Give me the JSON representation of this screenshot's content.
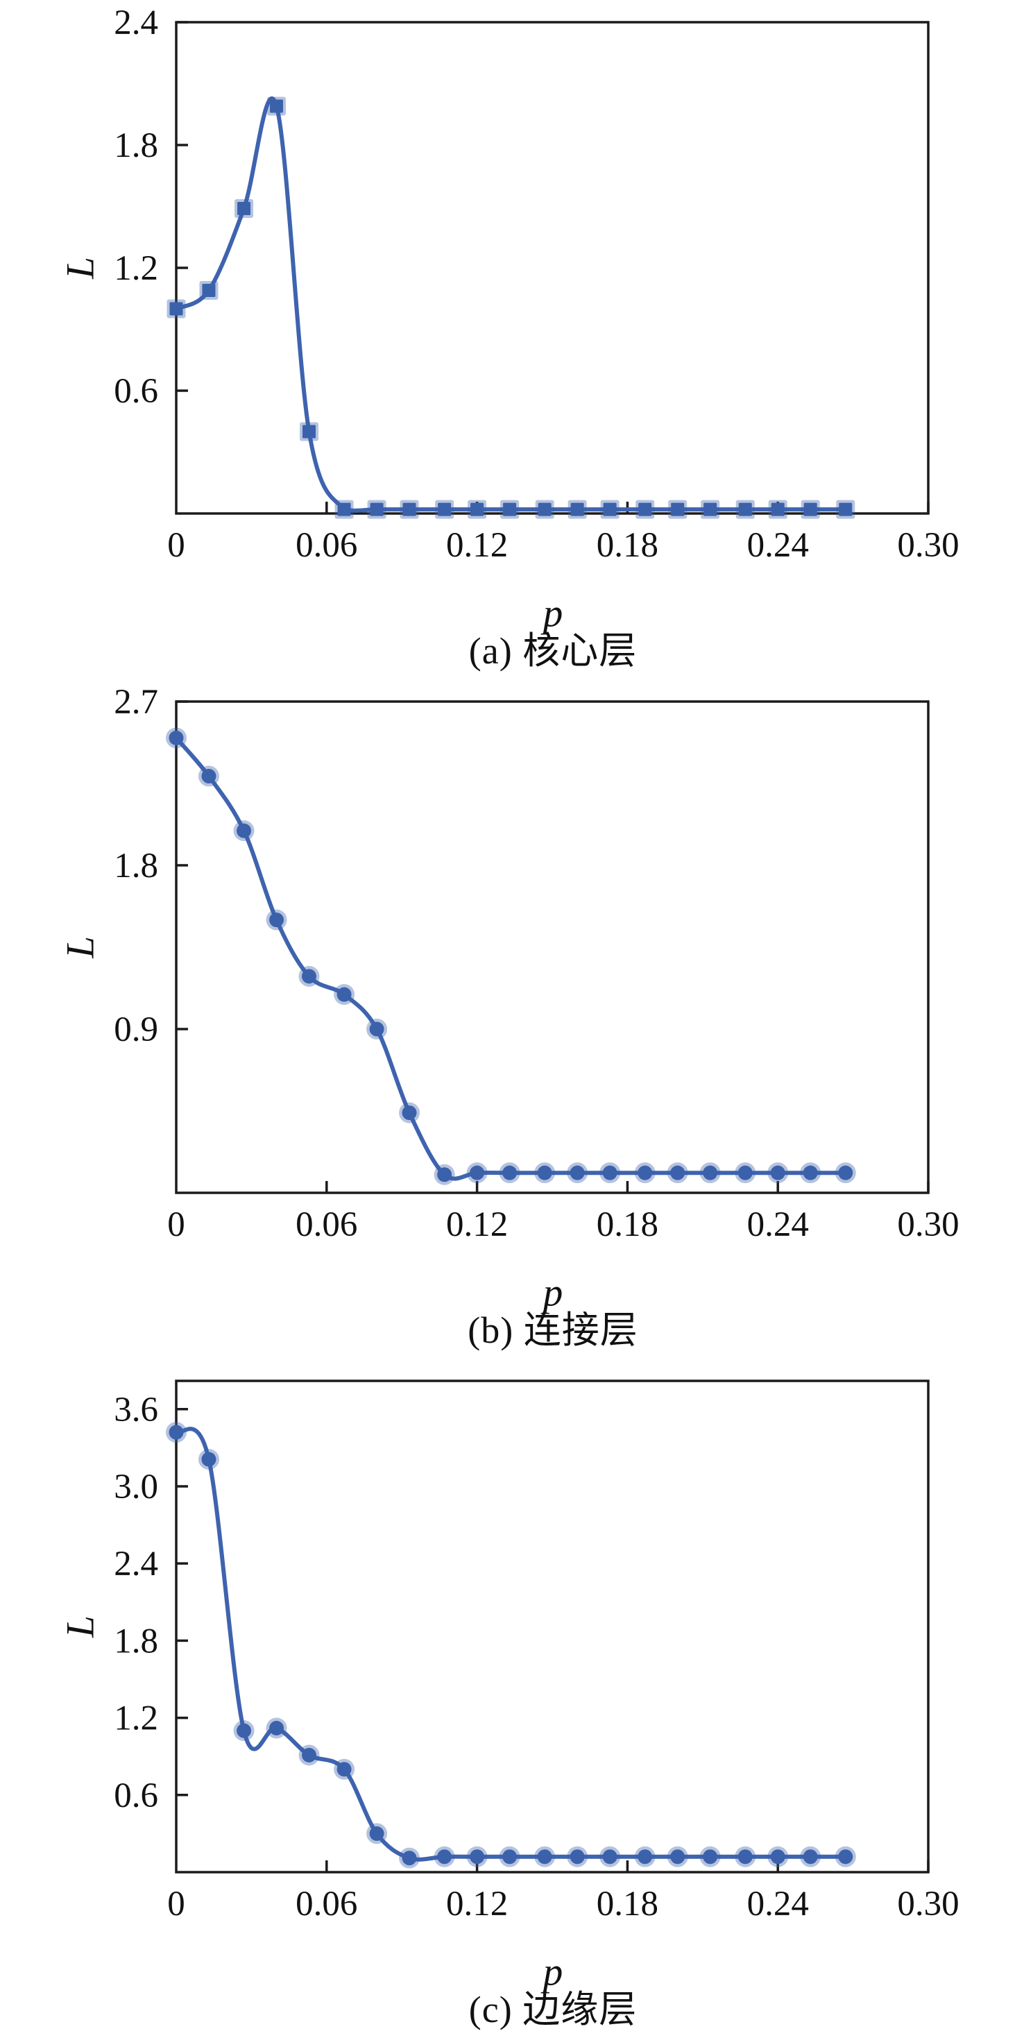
{
  "figure": {
    "background": "#ffffff",
    "description": "Three stacked line charts of average path length L versus rewiring probability p for three network layers"
  },
  "style": {
    "line_color": "#3e63af",
    "marker_color": "#3c61ab",
    "marker_halo_color": "#3c61ab",
    "marker_halo_opacity": 0.38,
    "axis_color": "#1b1b1b",
    "text_color": "#111111"
  },
  "chart_data": [
    {
      "type": "line",
      "id": "a",
      "caption": "(a) 核心层",
      "xlabel": "p",
      "ylabel": "L",
      "marker": "square",
      "legend": "none",
      "grid": false,
      "xlim": [
        0,
        0.3
      ],
      "ylim": [
        0,
        2.4
      ],
      "xticks": [
        0,
        0.06,
        0.12,
        0.18,
        0.24,
        0.3
      ],
      "xticklabels": [
        "0",
        "0.06",
        "0.12",
        "0.18",
        "0.24",
        "0.30"
      ],
      "yticks": [
        0.6,
        1.2,
        1.8,
        2.4
      ],
      "yticklabels": [
        "0.6",
        "1.2",
        "1.8",
        "2.4"
      ],
      "x": [
        0,
        0.013,
        0.027,
        0.04,
        0.053,
        0.067,
        0.08,
        0.093,
        0.107,
        0.12,
        0.133,
        0.147,
        0.16,
        0.173,
        0.187,
        0.2,
        0.213,
        0.227,
        0.24,
        0.253,
        0.267
      ],
      "y": [
        1.0,
        1.09,
        1.49,
        1.99,
        0.4,
        0.02,
        0.02,
        0.02,
        0.02,
        0.02,
        0.02,
        0.02,
        0.02,
        0.02,
        0.02,
        0.02,
        0.02,
        0.02,
        0.02,
        0.02,
        0.02
      ]
    },
    {
      "type": "line",
      "id": "b",
      "caption": "(b) 连接层",
      "xlabel": "p",
      "ylabel": "L",
      "marker": "circle",
      "legend": "none",
      "grid": false,
      "xlim": [
        0,
        0.3
      ],
      "ylim": [
        0,
        2.7
      ],
      "xticks": [
        0,
        0.06,
        0.12,
        0.18,
        0.24,
        0.3
      ],
      "xticklabels": [
        "0",
        "0.06",
        "0.12",
        "0.18",
        "0.24",
        "0.30"
      ],
      "yticks": [
        0.9,
        1.8,
        2.7
      ],
      "yticklabels": [
        "0.9",
        "1.8",
        "2.7"
      ],
      "x": [
        0,
        0.013,
        0.027,
        0.04,
        0.053,
        0.067,
        0.08,
        0.093,
        0.107,
        0.12,
        0.133,
        0.147,
        0.16,
        0.173,
        0.187,
        0.2,
        0.213,
        0.227,
        0.24,
        0.253,
        0.267
      ],
      "y": [
        2.5,
        2.29,
        1.99,
        1.5,
        1.19,
        1.09,
        0.9,
        0.44,
        0.1,
        0.11,
        0.11,
        0.11,
        0.11,
        0.11,
        0.11,
        0.11,
        0.11,
        0.11,
        0.11,
        0.11,
        0.11
      ]
    },
    {
      "type": "line",
      "id": "c",
      "caption": "(c) 边缘层",
      "xlabel": "p",
      "ylabel": "L",
      "marker": "circle",
      "legend": "none",
      "grid": false,
      "xlim": [
        0,
        0.3
      ],
      "ylim": [
        0,
        3.82
      ],
      "xticks": [
        0,
        0.06,
        0.12,
        0.18,
        0.24,
        0.3
      ],
      "xticklabels": [
        "0",
        "0.06",
        "0.12",
        "0.18",
        "0.24",
        "0.30"
      ],
      "yticks": [
        0.6,
        1.2,
        1.8,
        2.4,
        3.0,
        3.6
      ],
      "yticklabels": [
        "0.6",
        "1.2",
        "1.8",
        "2.4",
        "3.0",
        "3.6"
      ],
      "x": [
        0,
        0.013,
        0.027,
        0.04,
        0.053,
        0.067,
        0.08,
        0.093,
        0.107,
        0.12,
        0.133,
        0.147,
        0.16,
        0.173,
        0.187,
        0.2,
        0.213,
        0.227,
        0.24,
        0.253,
        0.267
      ],
      "y": [
        3.42,
        3.21,
        1.1,
        1.12,
        0.91,
        0.8,
        0.3,
        0.11,
        0.12,
        0.12,
        0.12,
        0.12,
        0.12,
        0.12,
        0.12,
        0.12,
        0.12,
        0.12,
        0.12,
        0.12,
        0.12
      ]
    }
  ]
}
